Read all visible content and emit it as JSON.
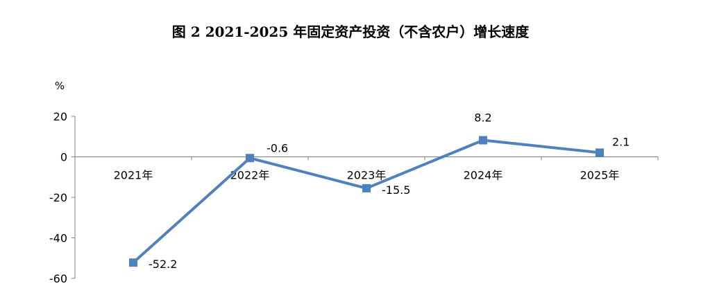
{
  "chart_data": {
    "type": "line",
    "title": "图 2 2021-2025 年固定资产投资（不含农户）增长速度",
    "ylabel": "%",
    "xlabel": "",
    "categories": [
      "2021年",
      "2022年",
      "2023年",
      "2024年",
      "2025年"
    ],
    "series": [
      {
        "values": [
          -52.2,
          -0.6,
          -15.5,
          8.2,
          2.1
        ],
        "labels": [
          "-52.2",
          "-0.6",
          "-15.5",
          "8.2",
          "2.1"
        ]
      }
    ],
    "ylim": [
      -60,
      20
    ],
    "yticks": [
      20,
      0,
      -20,
      -40,
      -60
    ],
    "grid": false,
    "legend": "none",
    "line_color": "#4F81BD",
    "marker": "square"
  }
}
